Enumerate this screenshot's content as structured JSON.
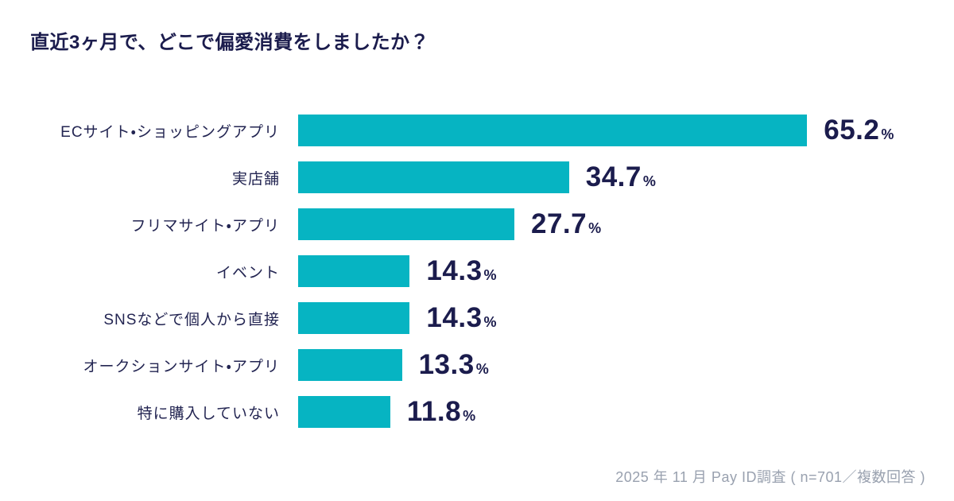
{
  "page": {
    "title": "直近3ヶ月で、どこで偏愛消費をしましたか？",
    "source_note": "2025 年 11 月 Pay ID調査 ( n=701／複数回答 )"
  },
  "colors": {
    "background": "#ffffff",
    "bar": "#06b4c2",
    "title_text": "#1b1c4d",
    "label_text": "#232552",
    "value_text": "#1b1c4d",
    "source_note_text": "#99a1af"
  },
  "chart_data": {
    "type": "bar",
    "orientation": "horizontal",
    "title": "直近3ヶ月で、どこで偏愛消費をしましたか？",
    "categories": [
      "ECサイト・ショッピングアプリ",
      "実店舗",
      "フリマサイト・アプリ",
      "イベント",
      "SNSなどで個人から直接",
      "オークションサイト・アプリ",
      "特に購入していない"
    ],
    "values": [
      65.2,
      34.7,
      27.7,
      14.3,
      14.3,
      13.3,
      11.8
    ],
    "value_labels": [
      "65.2",
      "34.7",
      "27.7",
      "14.3",
      "14.3",
      "13.3",
      "11.8"
    ],
    "unit": "%",
    "xlabel": "",
    "ylabel": "",
    "xlim": [
      0,
      70
    ],
    "grid": false,
    "legend": false,
    "data_labels": "outside-end",
    "source": "2025 年 11 月 Pay ID調査 ( n=701／複数回答 )"
  }
}
